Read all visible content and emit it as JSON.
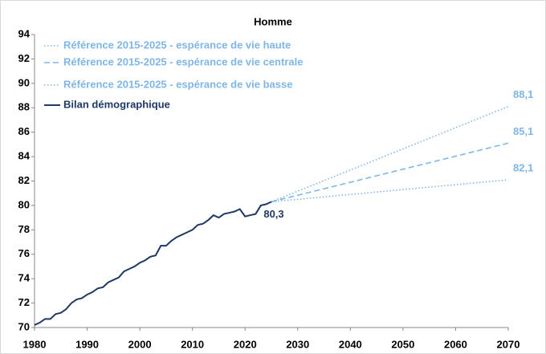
{
  "chart_data": {
    "type": "line",
    "title": "Homme",
    "xlim": [
      1980,
      2070
    ],
    "xticks": [
      1980,
      1990,
      2000,
      2010,
      2020,
      2030,
      2040,
      2050,
      2060,
      2070
    ],
    "ylim": [
      70,
      94
    ],
    "yticks": [
      70,
      72,
      74,
      76,
      78,
      80,
      82,
      84,
      86,
      88,
      90,
      92,
      94
    ],
    "grid": false,
    "legend": "upper left",
    "series": [
      {
        "name": "Référence 2015-2025 - espérance de vie haute",
        "color": "#7fb6e6",
        "style": "dotted",
        "x": [
          2025,
          2070
        ],
        "values": [
          80.3,
          88.1
        ],
        "value_labels": [
          null,
          "88,1"
        ]
      },
      {
        "name": "Référence 2015-2025 - espérance de vie centrale",
        "color": "#7fb6e6",
        "style": "dashed",
        "x": [
          2025,
          2070
        ],
        "values": [
          80.3,
          85.1
        ],
        "value_labels": [
          null,
          "85,1"
        ]
      },
      {
        "name": "Référence 2015-2025 - espérance de vie basse",
        "color": "#7fb6e6",
        "style": "dotted",
        "x": [
          2025,
          2070
        ],
        "values": [
          80.3,
          82.1
        ],
        "value_labels": [
          null,
          "82,1"
        ]
      },
      {
        "name": "Bilan démographique",
        "color": "#1f3864",
        "style": "solid",
        "x": [
          1980,
          1981,
          1982,
          1983,
          1984,
          1985,
          1986,
          1987,
          1988,
          1989,
          1990,
          1991,
          1992,
          1993,
          1994,
          1995,
          1996,
          1997,
          1998,
          1999,
          2000,
          2001,
          2002,
          2003,
          2004,
          2005,
          2006,
          2007,
          2008,
          2009,
          2010,
          2011,
          2012,
          2013,
          2014,
          2015,
          2016,
          2017,
          2018,
          2019,
          2020,
          2021,
          2022,
          2023,
          2024,
          2025
        ],
        "values": [
          70.2,
          70.4,
          70.7,
          70.7,
          71.1,
          71.2,
          71.5,
          72.0,
          72.3,
          72.4,
          72.7,
          72.9,
          73.2,
          73.3,
          73.7,
          73.9,
          74.1,
          74.6,
          74.8,
          75.0,
          75.3,
          75.5,
          75.8,
          75.9,
          76.7,
          76.7,
          77.1,
          77.4,
          77.6,
          77.8,
          78.0,
          78.4,
          78.5,
          78.8,
          79.2,
          79.0,
          79.3,
          79.4,
          79.5,
          79.7,
          79.1,
          79.2,
          79.3,
          80.0,
          80.1,
          80.3
        ],
        "value_labels": [
          null,
          null,
          null,
          null,
          null,
          null,
          null,
          null,
          null,
          null,
          null,
          null,
          null,
          null,
          null,
          null,
          null,
          null,
          null,
          null,
          null,
          null,
          null,
          null,
          null,
          null,
          null,
          null,
          null,
          null,
          null,
          null,
          null,
          null,
          null,
          null,
          null,
          null,
          null,
          null,
          null,
          null,
          null,
          null,
          null,
          "80,3"
        ]
      }
    ]
  }
}
